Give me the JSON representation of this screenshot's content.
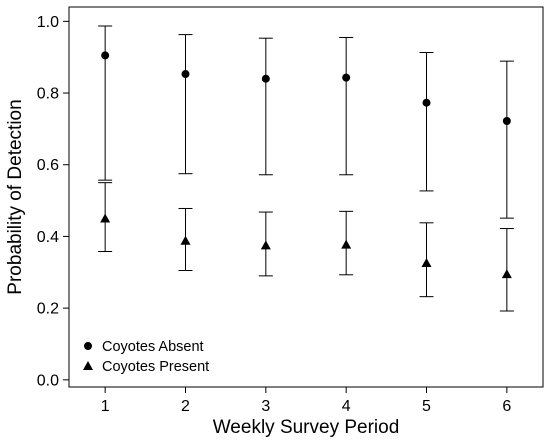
{
  "chart_data": {
    "type": "scatter",
    "title": "",
    "xlabel": "Weekly Survey Period",
    "ylabel": "Probability of Detection",
    "x": [
      1,
      2,
      3,
      4,
      5,
      6
    ],
    "xticks": [
      "1",
      "2",
      "3",
      "4",
      "5",
      "6"
    ],
    "xlim": [
      0.55,
      6.45
    ],
    "yticks": [
      "0.0",
      "0.2",
      "0.4",
      "0.6",
      "0.8",
      "1.0"
    ],
    "ylim": [
      -0.02,
      1.04
    ],
    "grid": false,
    "legend": "bottom-left",
    "error_bars": true,
    "series": [
      {
        "name": "Coyotes Absent",
        "marker": "circle",
        "values": [
          0.905,
          0.853,
          0.84,
          0.843,
          0.773,
          0.722
        ],
        "lower": [
          0.557,
          0.575,
          0.572,
          0.572,
          0.527,
          0.451
        ],
        "upper": [
          0.987,
          0.963,
          0.953,
          0.955,
          0.913,
          0.889
        ]
      },
      {
        "name": "Coyotes Present",
        "marker": "triangle",
        "values": [
          0.45,
          0.388,
          0.375,
          0.377,
          0.326,
          0.295
        ],
        "lower": [
          0.358,
          0.305,
          0.29,
          0.293,
          0.232,
          0.192
        ],
        "upper": [
          0.55,
          0.478,
          0.468,
          0.47,
          0.438,
          0.422
        ]
      }
    ]
  }
}
